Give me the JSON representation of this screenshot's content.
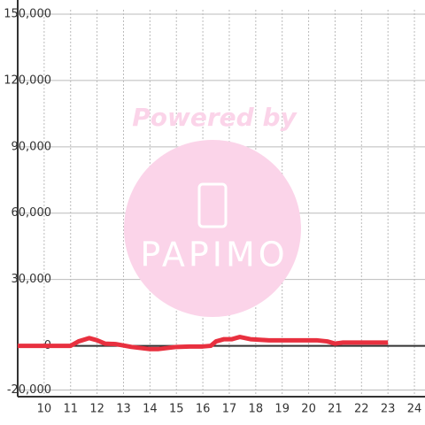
{
  "chart_data": {
    "type": "line",
    "watermark": {
      "top_text": "Powered by",
      "logo_text": "PAPIMO"
    },
    "x": [
      9,
      11,
      11.3,
      11.7,
      12,
      12.3,
      12.7,
      13.3,
      14,
      14.3,
      15,
      15.5,
      16,
      16.3,
      16.5,
      16.8,
      17.1,
      17.4,
      17.8,
      18.5,
      19.5,
      20.3,
      20.7,
      21,
      21.3,
      22,
      23
    ],
    "series": [
      {
        "color": "#e8303f",
        "values": [
          0,
          0,
          2000,
          3500,
          2500,
          1000,
          800,
          -500,
          -1500,
          -1500,
          -500,
          -300,
          -300,
          0,
          2000,
          3000,
          3000,
          4000,
          3000,
          2500,
          2500,
          2500,
          2000,
          1000,
          1500,
          1500,
          1500
        ]
      }
    ],
    "xlim": [
      9,
      24.4
    ],
    "xticks": [
      10,
      11,
      12,
      13,
      14,
      15,
      16,
      17,
      18,
      19,
      20,
      21,
      22,
      23,
      24
    ],
    "ylim": [
      -23000,
      152000
    ],
    "yticks": [
      {
        "value": -20000,
        "label": "-20,000"
      },
      0,
      {
        "value": 30000,
        "label": "30,000"
      },
      {
        "value": 60000,
        "label": "60,000"
      },
      {
        "value": 90000,
        "label": "90,000"
      },
      {
        "value": 120000,
        "label": "120,000"
      },
      {
        "value": 150000,
        "label": "150,000"
      }
    ],
    "grid": true
  }
}
